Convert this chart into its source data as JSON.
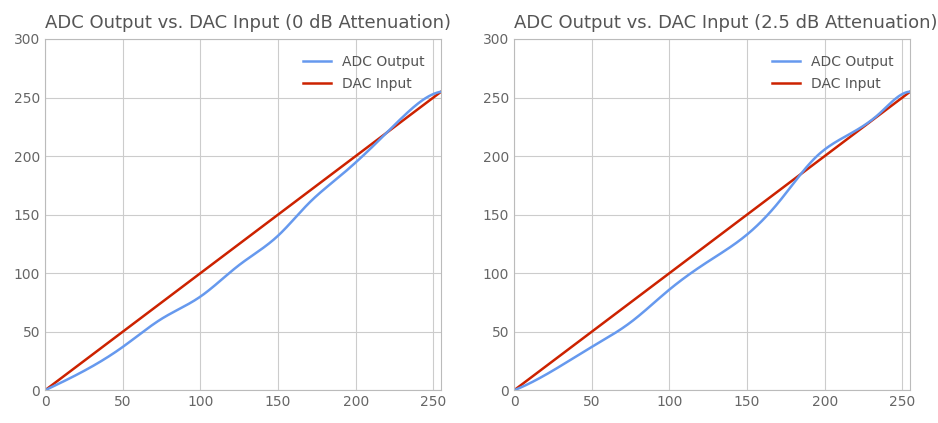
{
  "title1": "ADC Output vs. DAC Input (0 dB Attenuation)",
  "title2": "ADC Output vs. DAC Input (2.5 dB Attenuation)",
  "legend_adc": "ADC Output",
  "legend_dac": "DAC Input",
  "xlim": [
    0,
    255
  ],
  "ylim": [
    0,
    300
  ],
  "xticks": [
    0,
    50,
    100,
    150,
    200,
    250
  ],
  "yticks": [
    0,
    50,
    100,
    150,
    200,
    250,
    300
  ],
  "adc_color": "#6699ee",
  "dac_color": "#cc2200",
  "background_color": "#ffffff",
  "grid_color": "#cccccc",
  "title_fontsize": 13,
  "legend_fontsize": 10,
  "tick_fontsize": 10,
  "line_width": 1.8,
  "adc_power1": 0.82,
  "adc_power2": 0.82,
  "crossover_x": 155,
  "end_y": 255
}
